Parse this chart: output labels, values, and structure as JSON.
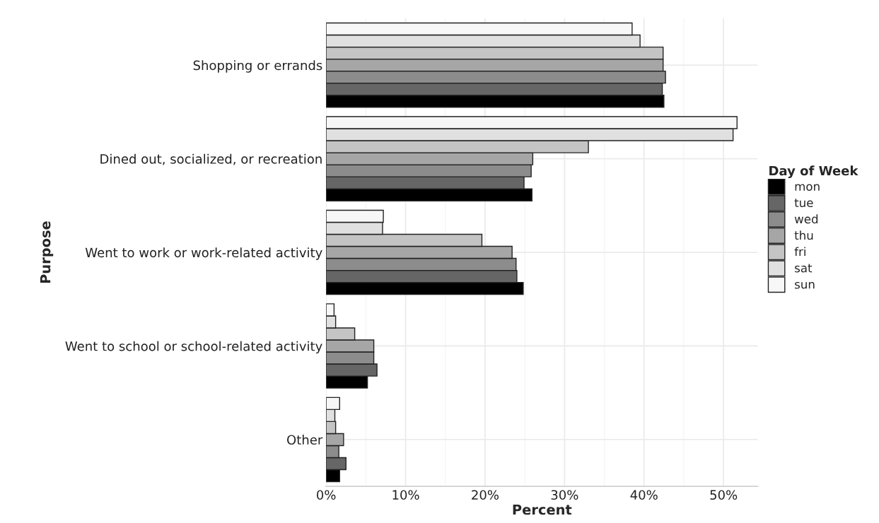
{
  "chart_data": {
    "type": "bar",
    "orientation": "horizontal",
    "xlabel": "Percent",
    "ylabel": "Purpose",
    "legend_title": "Day of Week",
    "legend": "right",
    "categories": [
      "Shopping or errands",
      "Dined out, socialized, or recreation",
      "Went to work or work-related activity",
      "Went to school or school-related activity",
      "Other"
    ],
    "series": [
      {
        "name": "mon",
        "color": "#000000",
        "values": [
          42.5,
          25.9,
          24.8,
          5.2,
          1.7
        ]
      },
      {
        "name": "tue",
        "color": "#666666",
        "values": [
          42.3,
          24.9,
          24.0,
          6.4,
          2.5
        ]
      },
      {
        "name": "wed",
        "color": "#8c8c8c",
        "values": [
          42.7,
          25.8,
          23.9,
          6.0,
          1.6
        ]
      },
      {
        "name": "thu",
        "color": "#a6a6a6",
        "values": [
          42.4,
          26.0,
          23.4,
          6.0,
          2.2
        ]
      },
      {
        "name": "fri",
        "color": "#c4c4c4",
        "values": [
          42.4,
          33.0,
          19.6,
          3.6,
          1.2
        ]
      },
      {
        "name": "sat",
        "color": "#e0e0e0",
        "values": [
          39.5,
          51.2,
          7.1,
          1.2,
          1.1
        ]
      },
      {
        "name": "sun",
        "color": "#f7f7f7",
        "values": [
          38.5,
          51.7,
          7.2,
          1.0,
          1.7
        ]
      }
    ],
    "xlim": [
      0,
      54.3
    ],
    "xticks": [
      {
        "value": 0,
        "label": "0%"
      },
      {
        "value": 10,
        "label": "10%"
      },
      {
        "value": 20,
        "label": "20%"
      },
      {
        "value": 30,
        "label": "30%"
      },
      {
        "value": 40,
        "label": "40%"
      },
      {
        "value": 50,
        "label": "50%"
      }
    ],
    "grid": true
  }
}
